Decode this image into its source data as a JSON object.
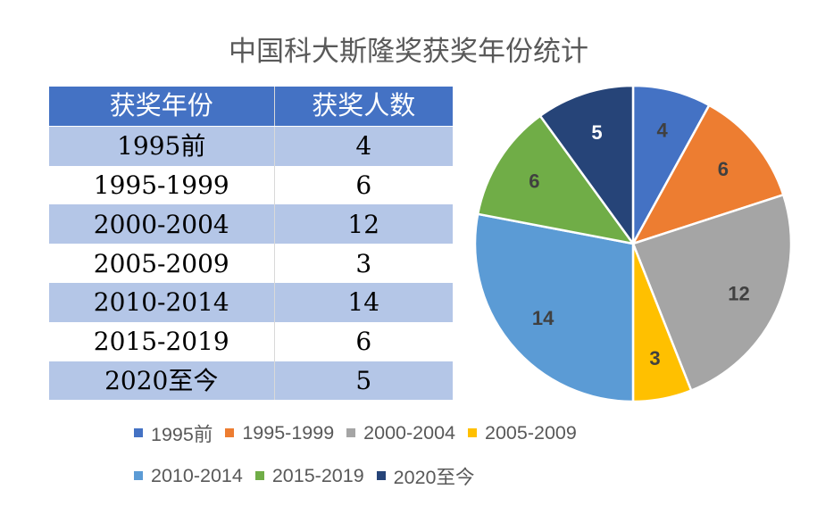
{
  "chart_data": {
    "type": "pie",
    "title": "中国科大斯隆奖获奖年份统计",
    "categories": [
      "1995前",
      "1995-1999",
      "2000-2004",
      "2005-2009",
      "2010-2014",
      "2015-2019",
      "2020至今"
    ],
    "values": [
      4,
      6,
      12,
      3,
      14,
      6,
      5
    ],
    "colors": [
      "#4472c4",
      "#ed7d31",
      "#a5a5a5",
      "#ffc000",
      "#5b9bd5",
      "#70ad47",
      "#264478"
    ],
    "label_colors": [
      "#404040",
      "#404040",
      "#404040",
      "#404040",
      "#404040",
      "#404040",
      "#ffffff"
    ],
    "legend_position": "bottom",
    "table": {
      "headers": [
        "获奖年份",
        "获奖人数"
      ],
      "rows": [
        [
          "1995前",
          "4"
        ],
        [
          "1995-1999",
          "6"
        ],
        [
          "2000-2004",
          "12"
        ],
        [
          "2005-2009",
          "3"
        ],
        [
          "2010-2014",
          "14"
        ],
        [
          "2015-2019",
          "6"
        ],
        [
          "2020至今",
          "5"
        ]
      ]
    }
  }
}
